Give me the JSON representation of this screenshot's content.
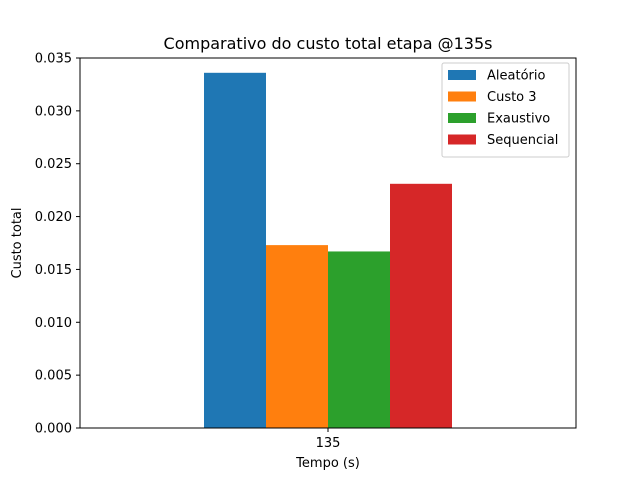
{
  "chart_data": {
    "type": "bar",
    "title": "Comparativo do custo total etapa @135s",
    "xlabel": "Tempo (s)",
    "ylabel": "Custo total",
    "categories": [
      "135"
    ],
    "series": [
      {
        "name": "Aleatório",
        "values": [
          0.0336
        ],
        "color": "#1f77b4"
      },
      {
        "name": "Custo 3",
        "values": [
          0.0173
        ],
        "color": "#ff7f0e"
      },
      {
        "name": "Exaustivo",
        "values": [
          0.0167
        ],
        "color": "#2ca02c"
      },
      {
        "name": "Sequencial",
        "values": [
          0.0231
        ],
        "color": "#d62728"
      }
    ],
    "ylim": [
      0,
      0.035
    ],
    "yticks": [
      "0.000",
      "0.005",
      "0.010",
      "0.015",
      "0.020",
      "0.025",
      "0.030",
      "0.035"
    ],
    "grid": false,
    "legend_position": "top-right"
  }
}
